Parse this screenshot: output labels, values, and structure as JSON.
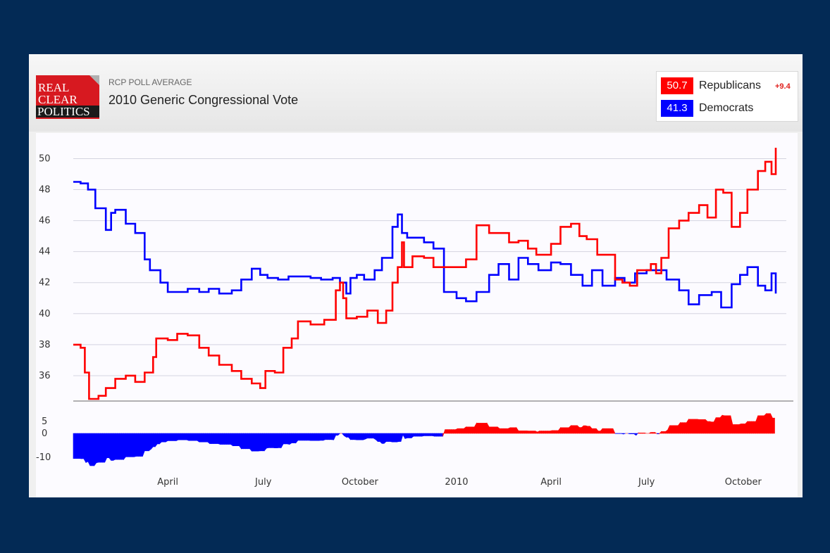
{
  "header": {
    "logo_lines": [
      "REAL",
      "CLEAR",
      "POLITICS"
    ],
    "subtitle": "RCP POLL AVERAGE",
    "title": "2010 Generic Congressional Vote"
  },
  "legend": {
    "items": [
      {
        "value": "50.7",
        "name": "Republicans",
        "spread": "+9.4",
        "color": "#ff0000"
      },
      {
        "value": "41.3",
        "name": "Democrats",
        "spread": "",
        "color": "#0000ff"
      }
    ]
  },
  "chart_data": [
    {
      "type": "line",
      "title": "",
      "xlabel": "",
      "ylabel": "",
      "x_tick_labels": [
        "April",
        "July",
        "October",
        "2010",
        "April",
        "July",
        "October"
      ],
      "x_tick_dates": [
        "2009-04-01",
        "2009-07-01",
        "2009-10-01",
        "2010-01-01",
        "2010-04-01",
        "2010-07-01",
        "2010-10-01"
      ],
      "y_ticks": [
        36,
        38,
        40,
        42,
        44,
        46,
        48,
        50
      ],
      "grid": true,
      "series": [
        {
          "name": "Republicans",
          "color": "#ff0000",
          "x": [
            "2009-01-01",
            "2009-01-08",
            "2009-01-12",
            "2009-01-16",
            "2009-01-25",
            "2009-02-01",
            "2009-02-10",
            "2009-02-20",
            "2009-03-01",
            "2009-03-10",
            "2009-03-18",
            "2009-03-21",
            "2009-04-01",
            "2009-04-10",
            "2009-04-20",
            "2009-05-01",
            "2009-05-10",
            "2009-05-20",
            "2009-06-01",
            "2009-06-10",
            "2009-06-20",
            "2009-06-28",
            "2009-07-03",
            "2009-07-12",
            "2009-07-20",
            "2009-07-28",
            "2009-08-03",
            "2009-08-15",
            "2009-08-28",
            "2009-09-08",
            "2009-09-12",
            "2009-09-15",
            "2009-09-18",
            "2009-09-28",
            "2009-10-08",
            "2009-10-18",
            "2009-10-26",
            "2009-11-01",
            "2009-11-06",
            "2009-11-10",
            "2009-11-12",
            "2009-11-20",
            "2009-12-01",
            "2009-12-10",
            "2009-12-25",
            "2010-01-01",
            "2010-01-10",
            "2010-01-20",
            "2010-01-25",
            "2010-02-01",
            "2010-02-10",
            "2010-02-20",
            "2010-03-01",
            "2010-03-10",
            "2010-03-18",
            "2010-04-01",
            "2010-04-10",
            "2010-04-20",
            "2010-04-28",
            "2010-05-05",
            "2010-05-15",
            "2010-05-25",
            "2010-06-01",
            "2010-06-08",
            "2010-06-15",
            "2010-06-22",
            "2010-07-01",
            "2010-07-05",
            "2010-07-10",
            "2010-07-15",
            "2010-07-22",
            "2010-08-01",
            "2010-08-10",
            "2010-08-20",
            "2010-08-28",
            "2010-09-05",
            "2010-09-12",
            "2010-09-20",
            "2010-09-28",
            "2010-10-05",
            "2010-10-15",
            "2010-10-22",
            "2010-10-28",
            "2010-11-01"
          ],
          "values": [
            38.0,
            37.8,
            36.2,
            34.5,
            34.7,
            35.2,
            35.8,
            36.0,
            35.6,
            36.2,
            37.2,
            38.4,
            38.3,
            38.7,
            38.6,
            37.8,
            37.3,
            36.7,
            36.3,
            35.8,
            35.5,
            35.2,
            36.3,
            36.2,
            37.8,
            38.4,
            39.5,
            39.3,
            39.6,
            41.5,
            42.0,
            41.0,
            39.7,
            39.8,
            40.2,
            39.4,
            40.2,
            42.0,
            43.0,
            44.6,
            43.0,
            43.7,
            43.6,
            43.0,
            43.0,
            43.0,
            43.5,
            45.7,
            45.7,
            45.2,
            45.2,
            44.6,
            44.7,
            44.2,
            43.8,
            44.5,
            45.6,
            45.8,
            45.0,
            44.8,
            43.8,
            43.8,
            42.2,
            42.0,
            41.8,
            42.8,
            42.8,
            43.2,
            42.6,
            43.6,
            45.5,
            46.0,
            46.5,
            47.0,
            46.2,
            48.0,
            47.8,
            45.6,
            46.5,
            48.0,
            49.2,
            49.8,
            49.0,
            50.7
          ]
        },
        {
          "name": "Democrats",
          "color": "#0000ff",
          "x": [
            "2009-01-01",
            "2009-01-08",
            "2009-01-15",
            "2009-01-22",
            "2009-02-01",
            "2009-02-06",
            "2009-02-10",
            "2009-02-20",
            "2009-03-01",
            "2009-03-10",
            "2009-03-15",
            "2009-03-25",
            "2009-04-01",
            "2009-04-10",
            "2009-04-20",
            "2009-05-01",
            "2009-05-10",
            "2009-05-20",
            "2009-06-01",
            "2009-06-10",
            "2009-06-20",
            "2009-06-28",
            "2009-07-05",
            "2009-07-15",
            "2009-07-25",
            "2009-08-05",
            "2009-08-15",
            "2009-08-25",
            "2009-09-05",
            "2009-09-12",
            "2009-09-18",
            "2009-09-22",
            "2009-09-28",
            "2009-10-05",
            "2009-10-15",
            "2009-10-22",
            "2009-11-01",
            "2009-11-06",
            "2009-11-10",
            "2009-11-15",
            "2009-12-01",
            "2009-12-10",
            "2009-12-20",
            "2010-01-01",
            "2010-01-10",
            "2010-01-20",
            "2010-02-01",
            "2010-02-10",
            "2010-02-20",
            "2010-03-01",
            "2010-03-10",
            "2010-03-20",
            "2010-04-01",
            "2010-04-10",
            "2010-04-20",
            "2010-05-01",
            "2010-05-10",
            "2010-05-20",
            "2010-06-01",
            "2010-06-10",
            "2010-06-20",
            "2010-07-01",
            "2010-07-10",
            "2010-07-20",
            "2010-08-01",
            "2010-08-10",
            "2010-08-20",
            "2010-09-01",
            "2010-09-10",
            "2010-09-20",
            "2010-09-28",
            "2010-10-05",
            "2010-10-15",
            "2010-10-22",
            "2010-10-28",
            "2010-11-01"
          ],
          "values": [
            48.5,
            48.4,
            48.0,
            46.8,
            45.4,
            46.5,
            46.7,
            45.8,
            45.2,
            43.5,
            42.8,
            42.0,
            41.4,
            41.4,
            41.6,
            41.4,
            41.6,
            41.3,
            41.5,
            42.2,
            42.9,
            42.5,
            42.3,
            42.2,
            42.4,
            42.4,
            42.3,
            42.2,
            42.3,
            42.0,
            41.3,
            42.3,
            42.5,
            42.2,
            42.8,
            43.6,
            45.6,
            46.4,
            45.2,
            44.9,
            44.6,
            44.2,
            41.4,
            41.0,
            40.8,
            41.4,
            42.5,
            43.2,
            42.2,
            43.6,
            43.2,
            42.8,
            43.3,
            43.2,
            42.5,
            41.8,
            42.8,
            41.8,
            42.3,
            42.0,
            42.6,
            42.8,
            42.8,
            42.2,
            41.5,
            40.6,
            41.2,
            41.4,
            40.4,
            41.9,
            42.5,
            43.0,
            41.8,
            41.5,
            42.6,
            41.3
          ]
        }
      ]
    },
    {
      "type": "area",
      "title": "",
      "y_ticks": [
        -10,
        -5,
        0,
        5
      ],
      "y_tick_labels": [
        "-10",
        "",
        "0",
        "5"
      ],
      "series": [
        {
          "name": "",
          "positive_color": "#ff0000",
          "negative_color": "#0000ff"
        }
      ]
    }
  ]
}
